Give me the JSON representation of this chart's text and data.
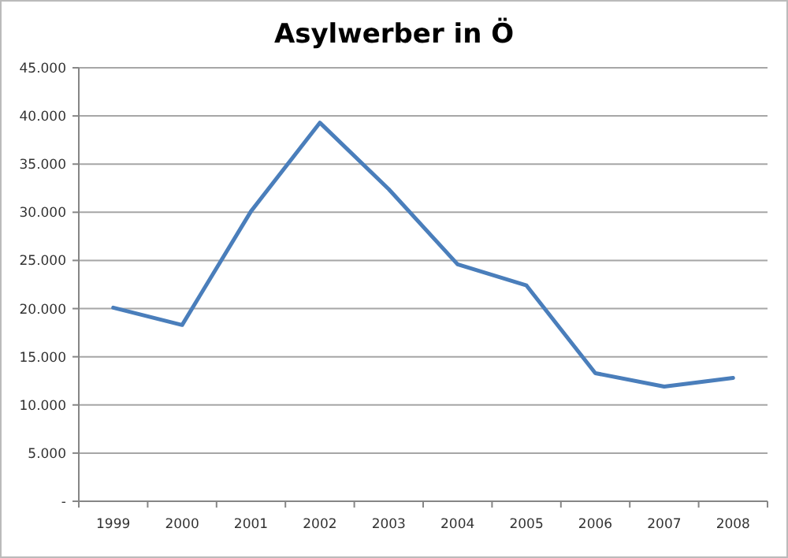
{
  "chart_data": {
    "type": "line",
    "title": "Asylwerber in Ö",
    "categories": [
      "1999",
      "2000",
      "2001",
      "2002",
      "2003",
      "2004",
      "2005",
      "2006",
      "2007",
      "2008"
    ],
    "series": [
      {
        "color": "#4a7ebb",
        "values": [
          20100,
          18300,
          30100,
          39300,
          32400,
          24600,
          22400,
          13300,
          11900,
          12800
        ]
      }
    ],
    "ylim": [
      0,
      45000
    ],
    "yticks": [
      {
        "value": 0,
        "label": "-"
      },
      {
        "value": 5000,
        "label": "5.000"
      },
      {
        "value": 10000,
        "label": "10.000"
      },
      {
        "value": 15000,
        "label": "15.000"
      },
      {
        "value": 20000,
        "label": "20.000"
      },
      {
        "value": 25000,
        "label": "25.000"
      },
      {
        "value": 30000,
        "label": "30.000"
      },
      {
        "value": 35000,
        "label": "35.000"
      },
      {
        "value": 40000,
        "label": "40.000"
      },
      {
        "value": 45000,
        "label": "45.000"
      }
    ],
    "grid": "y",
    "marker": "none",
    "line_style": "solid"
  }
}
